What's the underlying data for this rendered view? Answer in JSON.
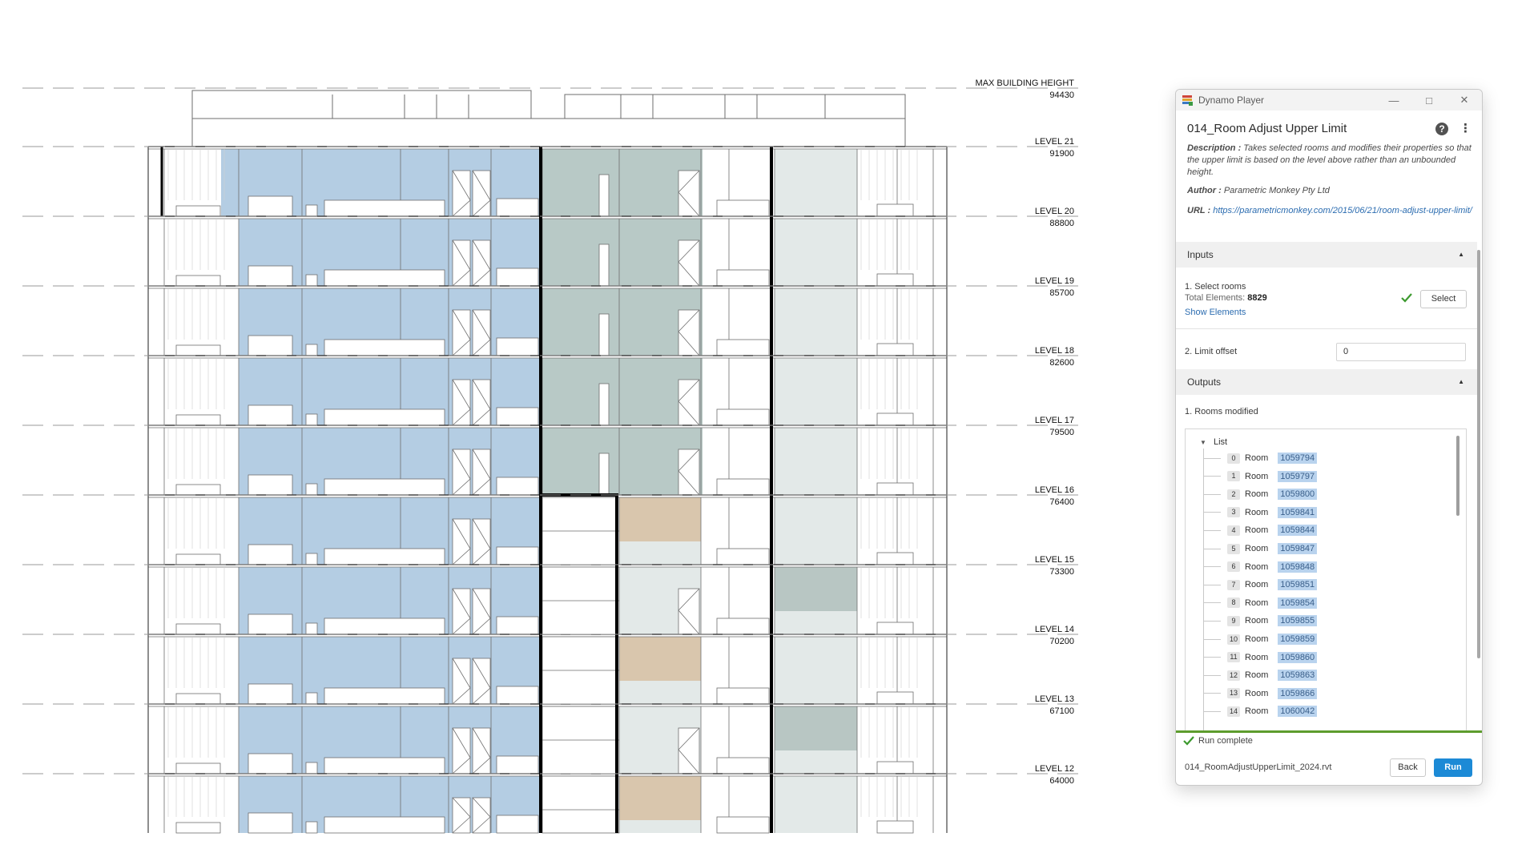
{
  "drawing": {
    "max_height": {
      "label": "MAX BUILDING HEIGHT",
      "value": "94430"
    },
    "levels": [
      {
        "name": "LEVEL 21",
        "value": "91900"
      },
      {
        "name": "LEVEL 20",
        "value": "88800"
      },
      {
        "name": "LEVEL 19",
        "value": "85700"
      },
      {
        "name": "LEVEL 18",
        "value": "82600"
      },
      {
        "name": "LEVEL 17",
        "value": "79500"
      },
      {
        "name": "LEVEL 16",
        "value": "76400"
      },
      {
        "name": "LEVEL 15",
        "value": "73300"
      },
      {
        "name": "LEVEL 14",
        "value": "70200"
      },
      {
        "name": "LEVEL 13",
        "value": "67100"
      },
      {
        "name": "LEVEL 12",
        "value": "64000"
      }
    ],
    "colors": {
      "blue_room": "#b4cde3",
      "green_room": "#b8c9c6",
      "light_green_room": "#e3e9e8",
      "tan_room": "#d9c6ad",
      "line": "#6e6e6e",
      "heavy_line": "#000000"
    }
  },
  "player": {
    "window_title": "Dynamo Player",
    "graph_title": "014_Room Adjust Upper Limit",
    "description_label": "Description :",
    "description_text": "Takes selected rooms and modifies their properties so that the upper limit is based on the level above rather than an unbounded height.",
    "author_label": "Author :",
    "author_text": "Parametric Monkey Pty Ltd",
    "url_label": "URL :",
    "url_text": "https://parametricmonkey.com/2015/06/21/room-adjust-upper-limit/",
    "inputs_header": "Inputs",
    "input1_label": "1. Select rooms",
    "total_label": "Total Elements:",
    "total_value": "8829",
    "select_label": "Select",
    "show_elements_label": "Show Elements",
    "input2_label": "2. Limit offset",
    "input2_value": "0",
    "outputs_header": "Outputs",
    "output1_label": "1. Rooms modified",
    "list_label": "List",
    "items": [
      {
        "index": "0",
        "type": "Room",
        "id": "1059794"
      },
      {
        "index": "1",
        "type": "Room",
        "id": "1059797"
      },
      {
        "index": "2",
        "type": "Room",
        "id": "1059800"
      },
      {
        "index": "3",
        "type": "Room",
        "id": "1059841"
      },
      {
        "index": "4",
        "type": "Room",
        "id": "1059844"
      },
      {
        "index": "5",
        "type": "Room",
        "id": "1059847"
      },
      {
        "index": "6",
        "type": "Room",
        "id": "1059848"
      },
      {
        "index": "7",
        "type": "Room",
        "id": "1059851"
      },
      {
        "index": "8",
        "type": "Room",
        "id": "1059854"
      },
      {
        "index": "9",
        "type": "Room",
        "id": "1059855"
      },
      {
        "index": "10",
        "type": "Room",
        "id": "1059859"
      },
      {
        "index": "11",
        "type": "Room",
        "id": "1059860"
      },
      {
        "index": "12",
        "type": "Room",
        "id": "1059863"
      },
      {
        "index": "13",
        "type": "Room",
        "id": "1059866"
      },
      {
        "index": "14",
        "type": "Room",
        "id": "1060042"
      }
    ],
    "status_text": "Run complete",
    "file_name": "014_RoomAdjustUpperLimit_2024.rvt",
    "back_label": "Back",
    "run_label": "Run",
    "accent_color": "#1c8ad6",
    "status_color": "#5d9c2d"
  }
}
